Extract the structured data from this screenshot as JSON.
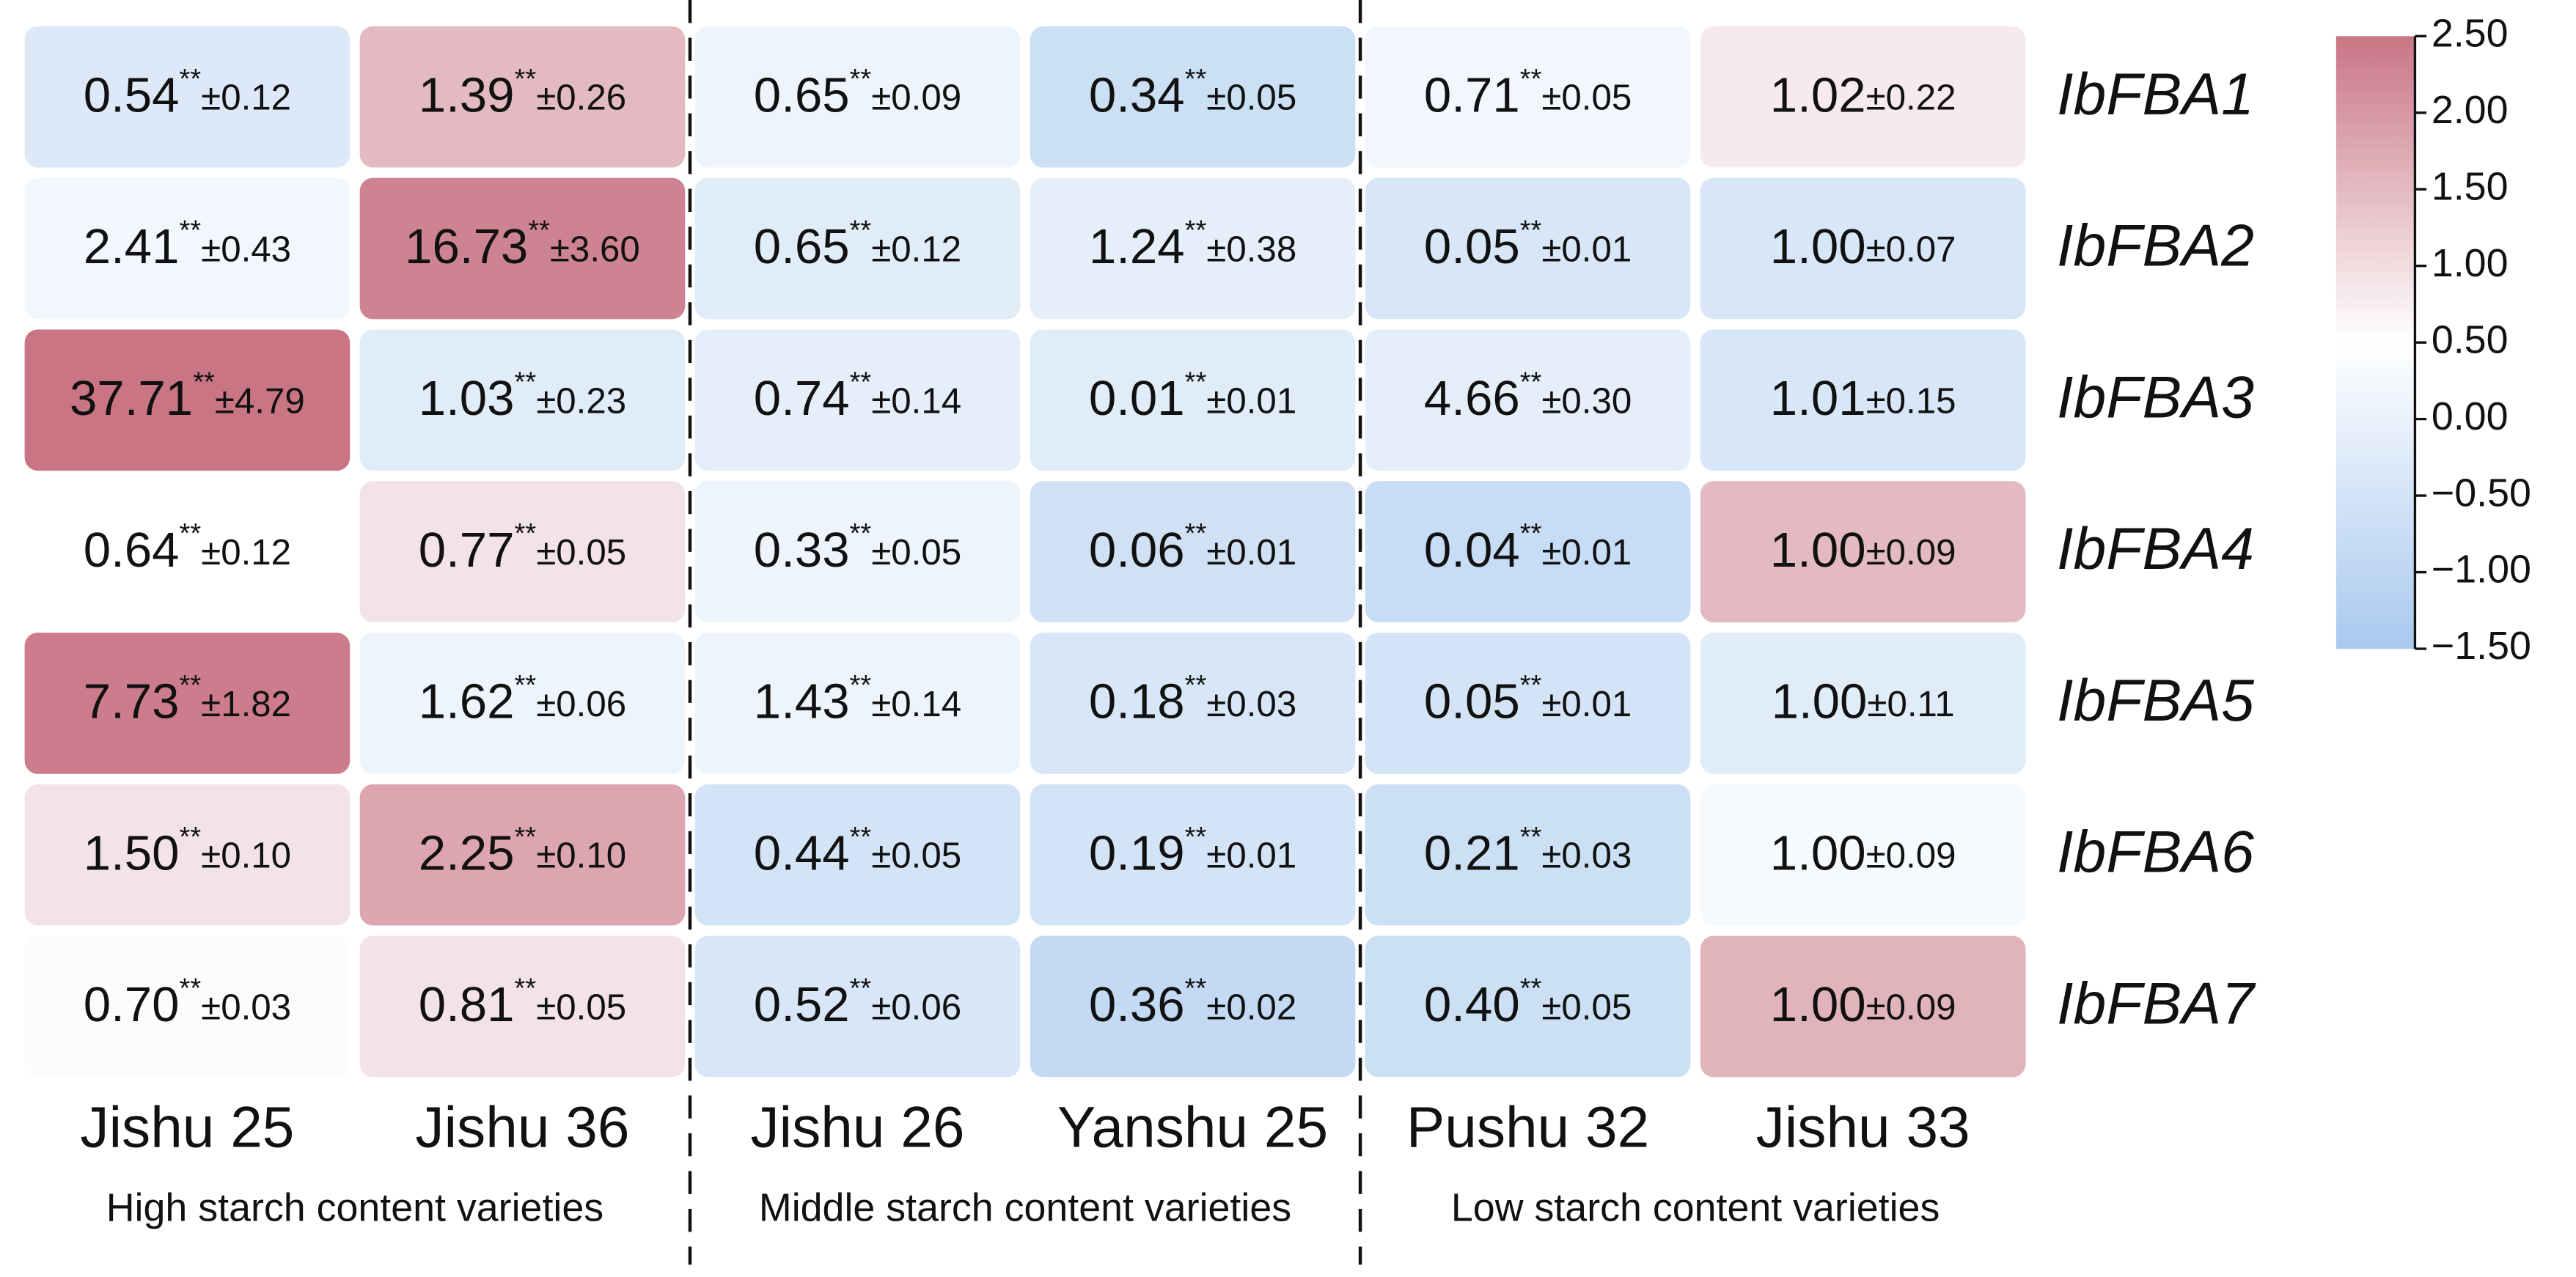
{
  "chart_data": {
    "type": "heatmap",
    "categories": [
      "Jishu 25",
      "Jishu 36",
      "Jishu 26",
      "Yanshu 25",
      "Pushu 32",
      "Jishu 33"
    ],
    "rows": [
      "IbFBA1",
      "IbFBA2",
      "IbFBA3",
      "IbFBA4",
      "IbFBA5",
      "IbFBA6",
      "IbFBA7"
    ],
    "groups": [
      "High starch content varieties",
      "Middle starch content varieties",
      "Low starch content varieties"
    ],
    "means": [
      [
        "0.54",
        "1.39",
        "0.65",
        "0.34",
        "0.71",
        "1.02"
      ],
      [
        "2.41",
        "16.73",
        "0.65",
        "1.24",
        "0.05",
        "1.00"
      ],
      [
        "37.71",
        "1.03",
        "0.74",
        "0.01",
        "4.66",
        "1.01"
      ],
      [
        "0.64",
        "0.77",
        "0.33",
        "0.06",
        "0.04",
        "1.00"
      ],
      [
        "7.73",
        "1.62",
        "1.43",
        "0.18",
        "0.05",
        "1.00"
      ],
      [
        "1.50",
        "2.25",
        "0.44",
        "0.19",
        "0.21",
        "1.00"
      ],
      [
        "0.70",
        "0.81",
        "0.52",
        "0.36",
        "0.40",
        "1.00"
      ]
    ],
    "significance": [
      [
        "**",
        "**",
        "**",
        "**",
        "**",
        null
      ],
      [
        "**",
        "**",
        "**",
        "**",
        "**",
        null
      ],
      [
        "**",
        "**",
        "**",
        "**",
        "**",
        null
      ],
      [
        "**",
        "**",
        "**",
        "**",
        "**",
        null
      ],
      [
        "**",
        "**",
        "**",
        "**",
        "**",
        null
      ],
      [
        "**",
        "**",
        "**",
        "**",
        "**",
        null
      ],
      [
        "**",
        "**",
        "**",
        "**",
        "**",
        null
      ]
    ],
    "errors": [
      [
        "±0.12",
        "±0.26",
        "±0.09",
        "±0.05",
        "±0.05",
        "±0.22"
      ],
      [
        "±0.43",
        "±3.60",
        "±0.12",
        "±0.38",
        "±0.01",
        "±0.07"
      ],
      [
        "±4.79",
        "±0.23",
        "±0.14",
        "±0.01",
        "±0.30",
        "±0.15"
      ],
      [
        "±0.12",
        "±0.05",
        "±0.05",
        "±0.01",
        "±0.01",
        "±0.09"
      ],
      [
        "±1.82",
        "±0.06",
        "±0.14",
        "±0.03",
        "±0.01",
        "±0.11"
      ],
      [
        "±0.10",
        "±0.10",
        "±0.05",
        "±0.01",
        "±0.03",
        "±0.09"
      ],
      [
        "±0.03",
        "±0.05",
        "±0.06",
        "±0.02",
        "±0.05",
        "±0.09"
      ]
    ],
    "color_values": [
      [
        -0.3,
        1.5,
        0.1,
        -0.7,
        0.2,
        0.8
      ],
      [
        0.2,
        2.3,
        -0.2,
        -0.1,
        -0.4,
        -0.4
      ],
      [
        2.5,
        -0.2,
        -0.1,
        -0.2,
        -0.1,
        -0.4
      ],
      [
        0.5,
        0.9,
        0.1,
        -0.6,
        -0.8,
        1.5
      ],
      [
        2.4,
        0.1,
        0.1,
        -0.4,
        -0.5,
        -0.2
      ],
      [
        0.9,
        1.8,
        -0.5,
        -0.5,
        -0.7,
        0.3
      ],
      [
        0.4,
        0.9,
        -0.4,
        -0.9,
        -0.7,
        1.6
      ]
    ],
    "colormap": [
      "#a9c9ef",
      "#ffffff",
      "#c97584"
    ],
    "clim": [
      -1.5,
      2.5
    ],
    "cticks": [
      {
        "value": 2.5,
        "label": "2.50"
      },
      {
        "value": 2,
        "label": "2.00"
      },
      {
        "value": 1.5,
        "label": "1.50"
      },
      {
        "value": 1,
        "label": "1.00"
      },
      {
        "value": 0.5,
        "label": "0.50"
      },
      {
        "value": 0,
        "label": "0.00"
      },
      {
        "value": -0.5,
        "label": "−0.50"
      },
      {
        "value": -1,
        "label": "−1.00"
      },
      {
        "value": -1.5,
        "label": "−1.50"
      }
    ]
  }
}
